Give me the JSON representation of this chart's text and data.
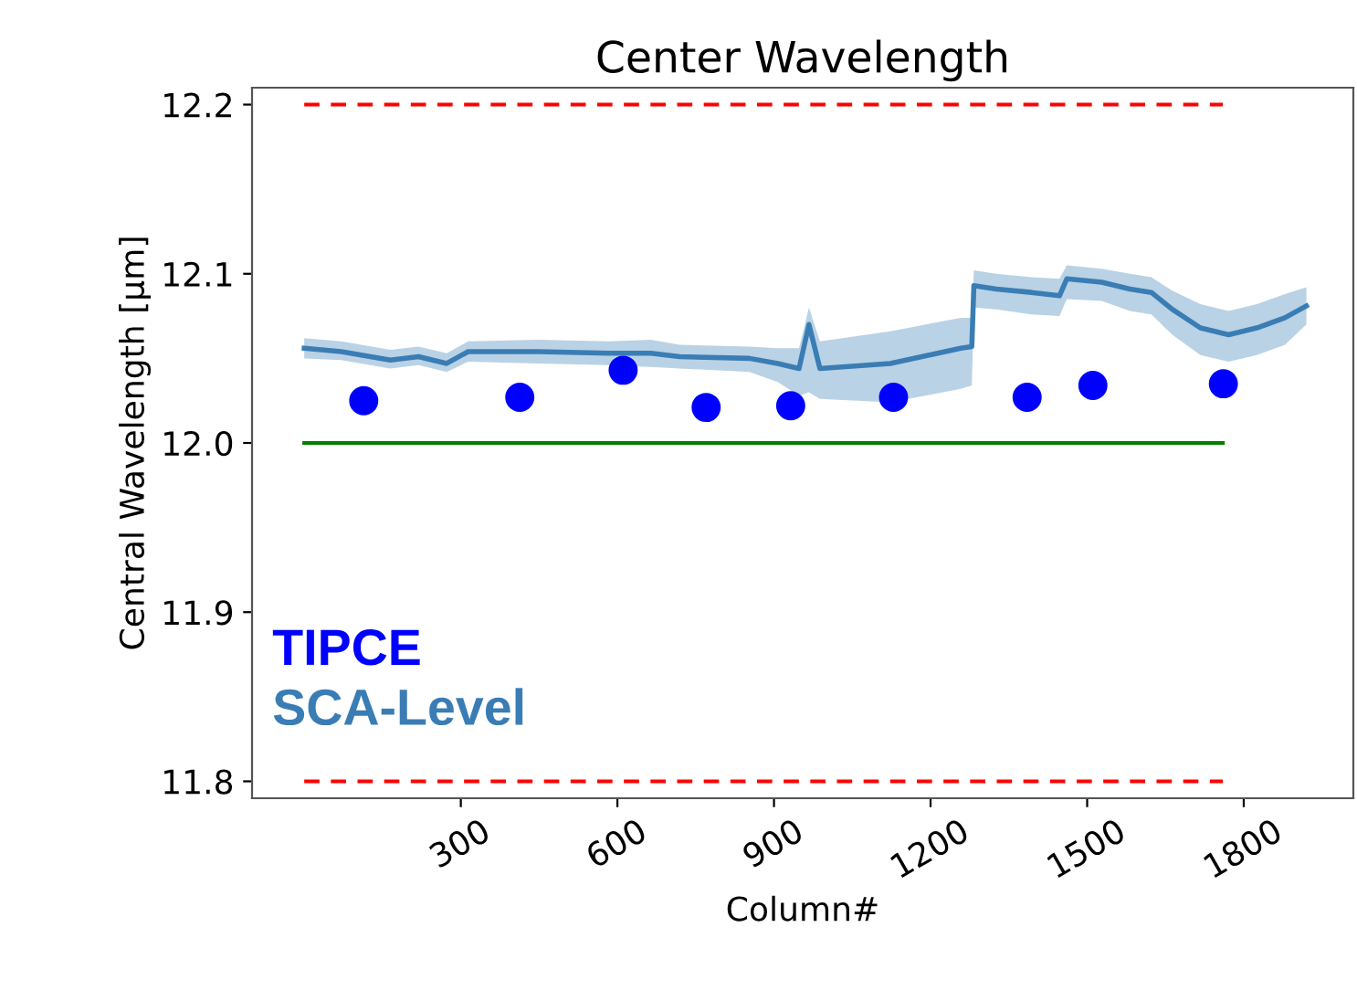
{
  "chart_data": {
    "type": "line",
    "title": "Center Wavelength",
    "xlabel": "Column#",
    "ylabel": "Central Wavelength [μm]",
    "xlim": [
      -100,
      2010
    ],
    "ylim": [
      11.79,
      12.21
    ],
    "xticks": [
      300,
      600,
      900,
      1200,
      1500,
      1800
    ],
    "yticks": [
      11.8,
      11.9,
      {
        "value": 12,
        "label": "12.0"
      },
      12.1,
      12.2
    ],
    "grid": false,
    "legend": "bottom left",
    "series": [
      {
        "name": "TIPCE",
        "type": "scatter",
        "color": "#0000ff",
        "marker": "circle",
        "x": [
          114,
          413,
          611,
          770,
          932,
          1129,
          1385,
          1511,
          1761
        ],
        "values": [
          12.025,
          12.027,
          12.043,
          12.021,
          12.022,
          12.027,
          12.027,
          12.034,
          12.035
        ]
      },
      {
        "name": "SCA-Level",
        "color": "#3a7db5",
        "x": [
          0,
          71,
          165,
          219,
          273,
          314,
          449,
          584,
          664,
          719,
          853,
          907,
          948,
          967,
          988,
          1123,
          1258,
          1279,
          1283,
          1326,
          1393,
          1447,
          1461,
          1528,
          1582,
          1623,
          1663,
          1717,
          1771,
          1825,
          1879,
          1920
        ],
        "values": [
          12.056,
          12.054,
          12.049,
          12.051,
          12.047,
          12.054,
          12.054,
          12.053,
          12.053,
          12.051,
          12.05,
          12.047,
          12.044,
          12.07,
          12.044,
          12.047,
          12.056,
          12.057,
          12.093,
          12.091,
          12.089,
          12.087,
          12.097,
          12.095,
          12.091,
          12.089,
          12.079,
          12.068,
          12.064,
          12.068,
          12.074,
          12.081
        ],
        "lower": [
          12.05,
          12.049,
          12.044,
          12.046,
          12.042,
          12.048,
          12.047,
          12.046,
          12.045,
          12.044,
          12.042,
          12.036,
          12.028,
          12.03,
          12.026,
          12.024,
          12.032,
          12.034,
          12.08,
          12.079,
          12.076,
          12.075,
          12.085,
          12.084,
          12.078,
          12.076,
          12.064,
          12.052,
          12.048,
          12.052,
          12.058,
          12.07
        ],
        "upper": [
          12.062,
          12.06,
          12.055,
          12.057,
          12.053,
          12.06,
          12.061,
          12.06,
          12.061,
          12.058,
          12.057,
          12.056,
          12.056,
          12.08,
          12.06,
          12.066,
          12.074,
          12.074,
          12.102,
          12.1,
          12.098,
          12.097,
          12.105,
          12.103,
          12.1,
          12.098,
          12.09,
          12.082,
          12.078,
          12.082,
          12.088,
          12.092
        ]
      },
      {
        "color": "#008000",
        "line_style": "solid",
        "x": [
          0,
          1760
        ],
        "values": [
          12.0,
          12.0
        ]
      },
      {
        "color": "#ff0000",
        "line_style": "dashed",
        "x": [
          0,
          1760
        ],
        "values": [
          12.2,
          12.2
        ]
      },
      {
        "color": "#ff0000",
        "line_style": "dashed",
        "x": [
          0,
          1760
        ],
        "values": [
          11.8,
          11.8
        ]
      }
    ]
  }
}
